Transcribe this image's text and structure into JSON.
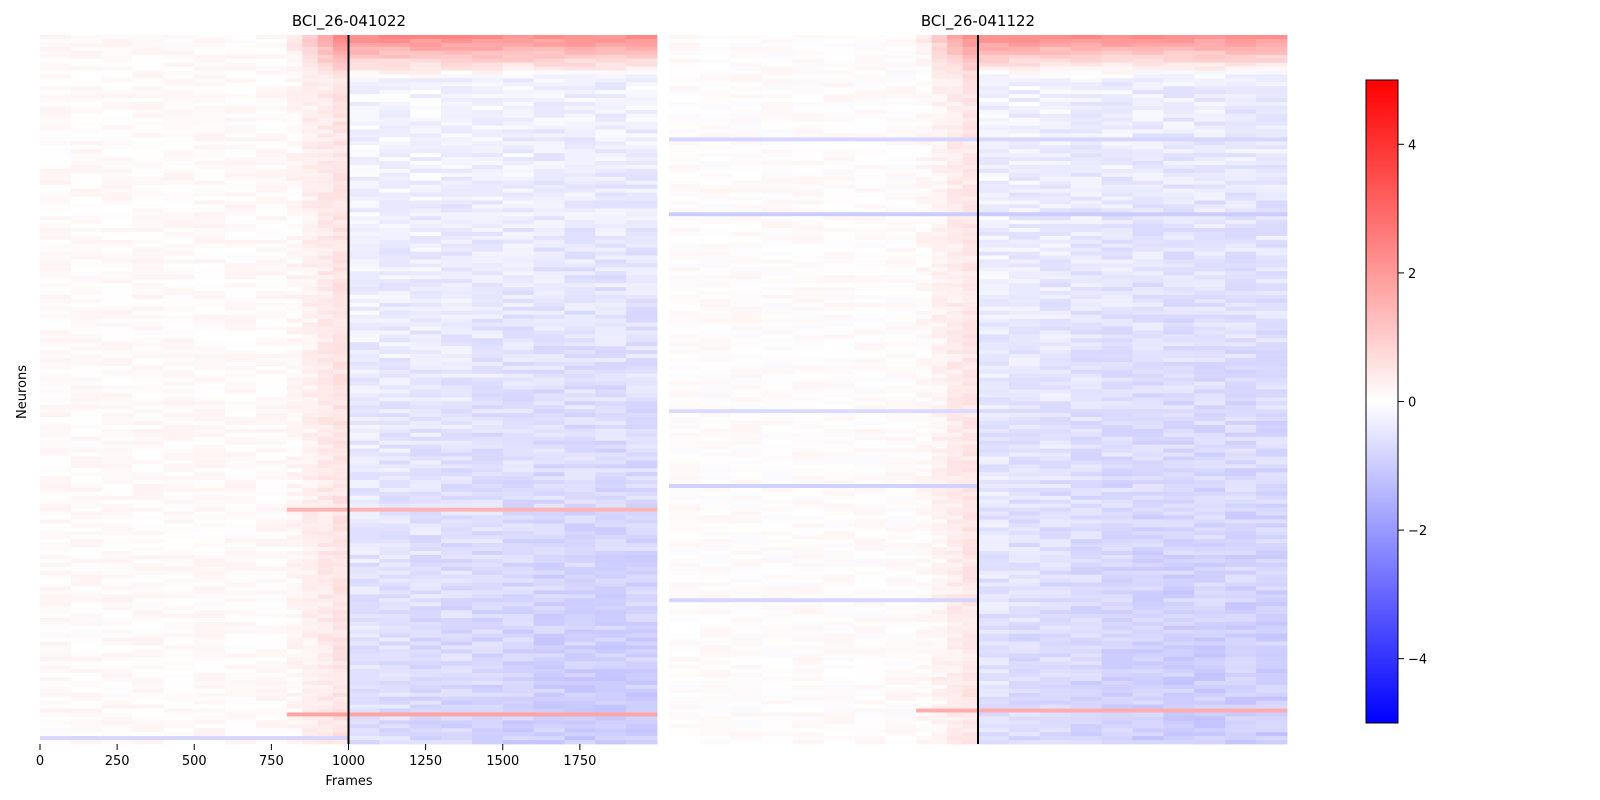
{
  "chart_data": {
    "type": "heatmap",
    "panels": [
      {
        "title": "BCI_26-041022",
        "xlabel": "Frames",
        "ylabel": "Neurons",
        "xlim": [
          0,
          2000
        ],
        "xticks": [
          0,
          250,
          500,
          750,
          1000,
          1250,
          1500,
          1750
        ],
        "show_xaxis": true,
        "event_line_x": 1000,
        "n_rows": 180,
        "profile": {
          "baseline": 0.1,
          "ramp_start": 800,
          "pre_peak": 0.5,
          "top_boost": 2.0,
          "late_min": -0.2,
          "late_max": -1.0,
          "late_growth_x": 1700
        },
        "row_accents": [
          {
            "row": 120,
            "x_from": 800,
            "x_to": 2000,
            "value": 1.5
          },
          {
            "row": 172,
            "x_from": 800,
            "x_to": 2000,
            "value": 1.8
          },
          {
            "row": 178,
            "x_from": 0,
            "x_to": 1000,
            "value": -0.8
          }
        ]
      },
      {
        "title": "BCI_26-041122",
        "xlabel": "",
        "ylabel": "",
        "xlim": [
          0,
          2000
        ],
        "xticks": [],
        "show_xaxis": false,
        "event_line_x": 1000,
        "n_rows": 180,
        "profile": {
          "baseline": 0.05,
          "ramp_start": 800,
          "pre_peak": 0.5,
          "top_boost": 2.0,
          "late_min": -0.3,
          "late_max": -1.0,
          "late_growth_x": 1600
        },
        "row_accents": [
          {
            "row": 26,
            "x_from": 0,
            "x_to": 2000,
            "value": -0.8
          },
          {
            "row": 45,
            "x_from": 0,
            "x_to": 2000,
            "value": -1.0
          },
          {
            "row": 95,
            "x_from": 0,
            "x_to": 2000,
            "value": -0.7
          },
          {
            "row": 114,
            "x_from": 0,
            "x_to": 1000,
            "value": -0.9
          },
          {
            "row": 143,
            "x_from": 0,
            "x_to": 1000,
            "value": -0.8
          },
          {
            "row": 171,
            "x_from": 800,
            "x_to": 2000,
            "value": 1.6
          }
        ]
      }
    ],
    "colorbar": {
      "vmin": -5,
      "vmax": 5,
      "ticks": [
        4,
        2,
        0,
        -2,
        -4
      ],
      "tick_labels": [
        "4",
        "2",
        "0",
        "−2",
        "−4"
      ],
      "colors": {
        "low": "#0000ff",
        "mid": "#ffffff",
        "high": "#ff0000"
      }
    }
  }
}
